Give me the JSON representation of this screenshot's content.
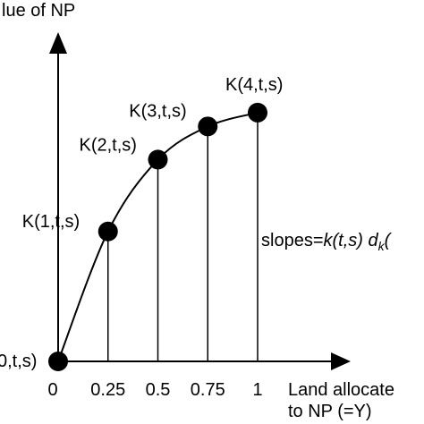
{
  "chart_data": {
    "type": "line",
    "title": "",
    "ylabel": "lue of NP",
    "xlabel_lines": [
      "Land allocate",
      "to NP (=Y)"
    ],
    "x_ticks": [
      "0",
      "0.25",
      "0.5",
      "0.75",
      "1"
    ],
    "xlim": [
      0,
      1.35
    ],
    "ylim": [
      0,
      1
    ],
    "points": [
      {
        "x": 0,
        "y": 0,
        "label": "0,t,s)"
      },
      {
        "x": 0.25,
        "y": 0.47,
        "label": "K(1,t,s)"
      },
      {
        "x": 0.5,
        "y": 0.73,
        "label": "K(2,t,s)"
      },
      {
        "x": 0.75,
        "y": 0.85,
        "label": "K(3,t,s)"
      },
      {
        "x": 1,
        "y": 0.9,
        "label": "K(4,t,s)"
      }
    ],
    "annotation": {
      "prefix": "slopes=",
      "italic1": "k(t,s)",
      "space": " ",
      "italic2": "d",
      "sub": "k",
      "suffix": "("
    },
    "grid": false,
    "drop_lines": true,
    "colors": {
      "line": "#000000",
      "marker": "#000000"
    }
  }
}
